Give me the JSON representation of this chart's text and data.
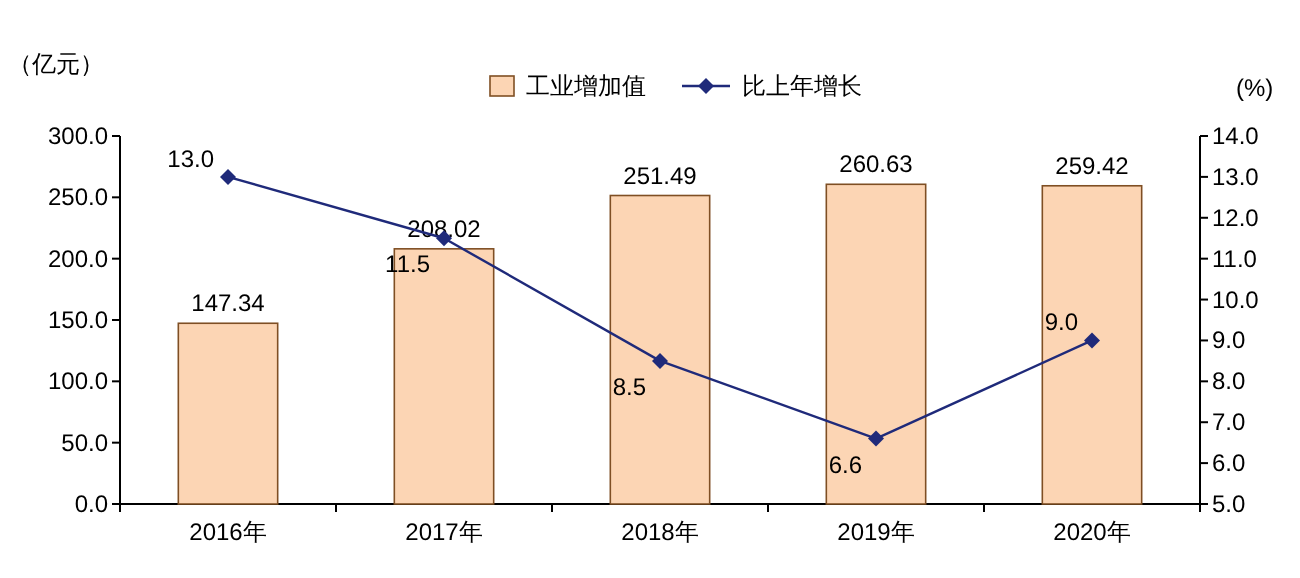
{
  "chart_data": {
    "type": "bar",
    "categories": [
      "2016年",
      "2017年",
      "2018年",
      "2019年",
      "2020年"
    ],
    "ylabel": "（亿元）",
    "y2label": "(%)",
    "ylim": [
      0,
      300
    ],
    "yticks": [
      {
        "value": 0,
        "label": "0.0"
      },
      {
        "value": 50,
        "label": "50.0"
      },
      {
        "value": 100,
        "label": "100.0"
      },
      {
        "value": 150,
        "label": "150.0"
      },
      {
        "value": 200,
        "label": "200.0"
      },
      {
        "value": 250,
        "label": "250.0"
      },
      {
        "value": 300,
        "label": "300.0"
      }
    ],
    "y2lim": [
      5,
      14
    ],
    "y2ticks": [
      {
        "value": 5,
        "label": "5.0"
      },
      {
        "value": 6,
        "label": "6.0"
      },
      {
        "value": 7,
        "label": "7.0"
      },
      {
        "value": 8,
        "label": "8.0"
      },
      {
        "value": 9,
        "label": "9.0"
      },
      {
        "value": 10,
        "label": "10.0"
      },
      {
        "value": 11,
        "label": "11.0"
      },
      {
        "value": 12,
        "label": "12.0"
      },
      {
        "value": 13,
        "label": "13.0"
      },
      {
        "value": 14,
        "label": "14.0"
      }
    ],
    "series": [
      {
        "name": "工业增加值",
        "type": "bar",
        "color": "#fcd5b4",
        "values": [
          147.34,
          208.02,
          251.49,
          260.63,
          259.42
        ],
        "value_labels": [
          "147.34",
          "208.02",
          "251.49",
          "260.63",
          "259.42"
        ]
      },
      {
        "name": "比上年增长",
        "type": "line",
        "axis": "y2",
        "color": "#1f2a7a",
        "marker": "diamond",
        "values": [
          13.0,
          11.5,
          8.5,
          6.6,
          9.0
        ],
        "value_labels": [
          "13.0",
          "11.5",
          "8.5",
          "6.6",
          "9.0"
        ]
      }
    ],
    "legend": "top",
    "grid": false
  }
}
